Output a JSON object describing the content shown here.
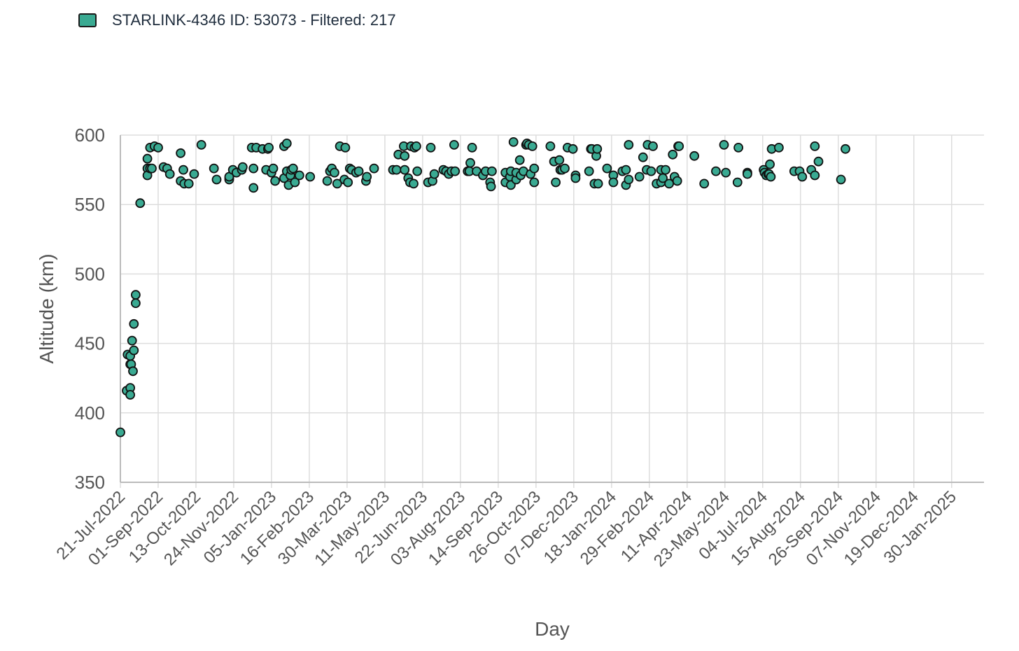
{
  "legend": {
    "label": "STARLINK-4346 ID: 53073 - Filtered: 217",
    "color": "#3aaa92"
  },
  "chart_data": {
    "type": "scatter",
    "xlabel": "Day",
    "ylabel": "Altitude (km)",
    "ylim": [
      350,
      600
    ],
    "yticks": [
      350,
      400,
      450,
      500,
      550,
      600
    ],
    "xlim": [
      "2022-07-21",
      "2025-03-07"
    ],
    "xtick_dates": [
      "2022-07-21",
      "2022-09-01",
      "2022-10-13",
      "2022-11-24",
      "2023-01-05",
      "2023-02-16",
      "2023-03-30",
      "2023-05-11",
      "2023-06-22",
      "2023-08-03",
      "2023-09-14",
      "2023-10-26",
      "2023-12-07",
      "2024-01-18",
      "2024-02-29",
      "2024-04-11",
      "2024-05-23",
      "2024-07-04",
      "2024-08-15",
      "2024-09-26",
      "2024-11-07",
      "2024-12-19",
      "2025-01-30"
    ],
    "xtick_labels": [
      "21-Jul-2022",
      "01-Sep-2022",
      "13-Oct-2022",
      "24-Nov-2022",
      "05-Jan-2023",
      "16-Feb-2023",
      "30-Mar-2023",
      "11-May-2023",
      "22-Jun-2023",
      "03-Aug-2023",
      "14-Sep-2023",
      "26-Oct-2023",
      "07-Dec-2023",
      "18-Jan-2024",
      "29-Feb-2024",
      "11-Apr-2024",
      "23-May-2024",
      "04-Jul-2024",
      "15-Aug-2024",
      "26-Sep-2024",
      "07-Nov-2024",
      "19-Dec-2024",
      "30-Jan-2025"
    ],
    "grid": true,
    "marker_color": "#3aaa92",
    "marker_edge": "#111111",
    "points": [
      [
        "2022-07-21",
        386
      ],
      [
        "2022-07-28",
        416
      ],
      [
        "2022-07-29",
        442
      ],
      [
        "2022-08-01",
        418
      ],
      [
        "2022-08-01",
        413
      ],
      [
        "2022-08-01",
        441
      ],
      [
        "2022-08-01",
        435
      ],
      [
        "2022-08-02",
        435
      ],
      [
        "2022-08-03",
        452
      ],
      [
        "2022-08-04",
        430
      ],
      [
        "2022-08-05",
        445
      ],
      [
        "2022-08-05",
        464
      ],
      [
        "2022-08-07",
        485
      ],
      [
        "2022-08-07",
        479
      ],
      [
        "2022-08-12",
        551
      ],
      [
        "2022-08-20",
        583
      ],
      [
        "2022-08-20",
        576
      ],
      [
        "2022-08-20",
        571
      ],
      [
        "2022-08-23",
        591
      ],
      [
        "2022-08-23",
        576
      ],
      [
        "2022-08-25",
        576
      ],
      [
        "2022-08-28",
        592
      ],
      [
        "2022-09-01",
        591
      ],
      [
        "2022-09-07",
        577
      ],
      [
        "2022-09-11",
        576
      ],
      [
        "2022-09-14",
        572
      ],
      [
        "2022-09-26",
        587
      ],
      [
        "2022-09-26",
        567
      ],
      [
        "2022-09-29",
        575
      ],
      [
        "2022-09-30",
        565
      ],
      [
        "2022-10-05",
        565
      ],
      [
        "2022-10-11",
        572
      ],
      [
        "2022-10-19",
        593
      ],
      [
        "2022-11-02",
        576
      ],
      [
        "2022-11-05",
        568
      ],
      [
        "2022-11-19",
        569
      ],
      [
        "2022-11-19",
        568
      ],
      [
        "2022-11-19",
        570
      ],
      [
        "2022-11-23",
        575
      ],
      [
        "2022-11-27",
        573
      ],
      [
        "2022-12-03",
        575
      ],
      [
        "2022-12-04",
        577
      ],
      [
        "2022-12-14",
        591
      ],
      [
        "2022-12-16",
        562
      ],
      [
        "2022-12-16",
        576
      ],
      [
        "2022-12-19",
        591
      ],
      [
        "2022-12-26",
        590
      ],
      [
        "2022-12-30",
        575
      ],
      [
        "2023-01-01",
        590
      ],
      [
        "2023-01-02",
        591
      ],
      [
        "2023-01-05",
        573
      ],
      [
        "2023-01-07",
        576
      ],
      [
        "2023-01-09",
        567
      ],
      [
        "2023-01-19",
        569
      ],
      [
        "2023-01-19",
        592
      ],
      [
        "2023-01-22",
        594
      ],
      [
        "2023-01-22",
        574
      ],
      [
        "2023-01-24",
        564
      ],
      [
        "2023-01-26",
        571
      ],
      [
        "2023-01-27",
        575
      ],
      [
        "2023-01-29",
        576
      ],
      [
        "2023-01-31",
        566
      ],
      [
        "2023-02-05",
        571
      ],
      [
        "2023-02-17",
        570
      ],
      [
        "2023-03-08",
        567
      ],
      [
        "2023-03-11",
        574
      ],
      [
        "2023-03-13",
        576
      ],
      [
        "2023-03-16",
        573
      ],
      [
        "2023-03-19",
        565
      ],
      [
        "2023-03-22",
        592
      ],
      [
        "2023-03-27",
        568
      ],
      [
        "2023-03-28",
        591
      ],
      [
        "2023-03-31",
        566
      ],
      [
        "2023-04-02",
        576
      ],
      [
        "2023-04-04",
        575
      ],
      [
        "2023-04-09",
        573
      ],
      [
        "2023-04-12",
        574
      ],
      [
        "2023-04-20",
        567
      ],
      [
        "2023-04-21",
        570
      ],
      [
        "2023-04-29",
        576
      ],
      [
        "2023-05-20",
        575
      ],
      [
        "2023-05-24",
        575
      ],
      [
        "2023-05-26",
        586
      ],
      [
        "2023-06-01",
        592
      ],
      [
        "2023-06-02",
        585
      ],
      [
        "2023-06-02",
        575
      ],
      [
        "2023-06-06",
        569
      ],
      [
        "2023-06-08",
        566
      ],
      [
        "2023-06-09",
        592
      ],
      [
        "2023-06-12",
        565
      ],
      [
        "2023-06-13",
        591
      ],
      [
        "2023-06-15",
        592
      ],
      [
        "2023-06-16",
        574
      ],
      [
        "2023-06-28",
        566
      ],
      [
        "2023-07-01",
        591
      ],
      [
        "2023-07-03",
        567
      ],
      [
        "2023-07-05",
        572
      ],
      [
        "2023-07-15",
        575
      ],
      [
        "2023-07-18",
        574
      ],
      [
        "2023-07-21",
        572
      ],
      [
        "2023-07-24",
        574
      ],
      [
        "2023-07-27",
        593
      ],
      [
        "2023-07-28",
        574
      ],
      [
        "2023-08-11",
        574
      ],
      [
        "2023-08-13",
        574
      ],
      [
        "2023-08-14",
        580
      ],
      [
        "2023-08-16",
        591
      ],
      [
        "2023-08-21",
        574
      ],
      [
        "2023-08-28",
        571
      ],
      [
        "2023-08-31",
        574
      ],
      [
        "2023-09-05",
        566
      ],
      [
        "2023-09-06",
        563
      ],
      [
        "2023-09-07",
        574
      ],
      [
        "2023-09-22",
        566
      ],
      [
        "2023-09-22",
        573
      ],
      [
        "2023-09-27",
        570
      ],
      [
        "2023-09-28",
        574
      ],
      [
        "2023-09-28",
        564
      ],
      [
        "2023-10-01",
        595
      ],
      [
        "2023-10-04",
        568
      ],
      [
        "2023-10-04",
        573
      ],
      [
        "2023-10-08",
        582
      ],
      [
        "2023-10-09",
        571
      ],
      [
        "2023-10-12",
        574
      ],
      [
        "2023-10-15",
        593
      ],
      [
        "2023-10-16",
        594
      ],
      [
        "2023-10-18",
        593
      ],
      [
        "2023-10-20",
        572
      ],
      [
        "2023-10-22",
        592
      ],
      [
        "2023-10-24",
        566
      ],
      [
        "2023-10-24",
        576
      ],
      [
        "2023-11-11",
        592
      ],
      [
        "2023-11-15",
        581
      ],
      [
        "2023-11-17",
        566
      ],
      [
        "2023-11-21",
        582
      ],
      [
        "2023-11-22",
        575
      ],
      [
        "2023-11-24",
        575
      ],
      [
        "2023-11-27",
        576
      ],
      [
        "2023-11-30",
        591
      ],
      [
        "2023-12-06",
        590
      ],
      [
        "2023-12-09",
        571
      ],
      [
        "2023-12-09",
        569
      ],
      [
        "2023-12-24",
        574
      ],
      [
        "2023-12-26",
        590
      ],
      [
        "2023-12-27",
        590
      ],
      [
        "2023-12-30",
        565
      ],
      [
        "2024-01-01",
        585
      ],
      [
        "2024-01-02",
        590
      ],
      [
        "2024-01-03",
        565
      ],
      [
        "2024-01-13",
        576
      ],
      [
        "2024-01-20",
        571
      ],
      [
        "2024-01-20",
        566
      ],
      [
        "2024-01-30",
        574
      ],
      [
        "2024-02-03",
        575
      ],
      [
        "2024-02-03",
        564
      ],
      [
        "2024-02-06",
        568
      ],
      [
        "2024-02-06",
        593
      ],
      [
        "2024-02-18",
        570
      ],
      [
        "2024-02-22",
        584
      ],
      [
        "2024-02-26",
        575
      ],
      [
        "2024-02-27",
        593
      ],
      [
        "2024-03-02",
        574
      ],
      [
        "2024-03-04",
        592
      ],
      [
        "2024-03-08",
        565
      ],
      [
        "2024-03-13",
        575
      ],
      [
        "2024-03-13",
        566
      ],
      [
        "2024-03-15",
        569
      ],
      [
        "2024-03-18",
        575
      ],
      [
        "2024-03-22",
        565
      ],
      [
        "2024-03-26",
        586
      ],
      [
        "2024-03-28",
        570
      ],
      [
        "2024-03-31",
        567
      ],
      [
        "2024-04-01",
        592
      ],
      [
        "2024-04-02",
        592
      ],
      [
        "2024-04-19",
        585
      ],
      [
        "2024-04-30",
        565
      ],
      [
        "2024-05-13",
        574
      ],
      [
        "2024-05-22",
        593
      ],
      [
        "2024-05-24",
        573
      ],
      [
        "2024-06-06",
        566
      ],
      [
        "2024-06-07",
        591
      ],
      [
        "2024-06-17",
        573
      ],
      [
        "2024-06-17",
        572
      ],
      [
        "2024-07-05",
        575
      ],
      [
        "2024-07-06",
        573
      ],
      [
        "2024-07-08",
        571
      ],
      [
        "2024-07-10",
        572
      ],
      [
        "2024-07-11",
        572
      ],
      [
        "2024-07-12",
        579
      ],
      [
        "2024-07-13",
        570
      ],
      [
        "2024-07-14",
        590
      ],
      [
        "2024-07-22",
        591
      ],
      [
        "2024-08-08",
        574
      ],
      [
        "2024-08-14",
        574
      ],
      [
        "2024-08-17",
        570
      ],
      [
        "2024-08-27",
        575
      ],
      [
        "2024-08-31",
        592
      ],
      [
        "2024-08-31",
        571
      ],
      [
        "2024-09-04",
        581
      ],
      [
        "2024-09-29",
        568
      ],
      [
        "2024-10-04",
        590
      ]
    ]
  }
}
